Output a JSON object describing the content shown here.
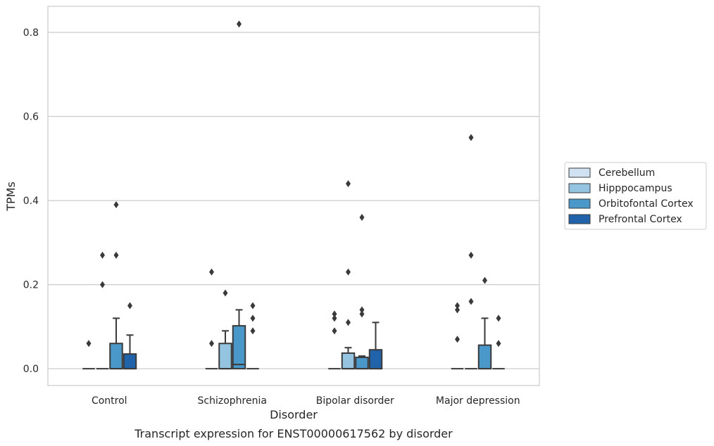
{
  "chart_data": {
    "type": "box",
    "caption": "Transcript expression for ENST00000617562 by disorder",
    "xlabel": "Disorder",
    "ylabel": "TPMs",
    "ylim": [
      -0.04,
      0.862
    ],
    "yticks": [
      0.0,
      0.2,
      0.4,
      0.6,
      0.8
    ],
    "ytick_labels": [
      "0.0",
      "0.2",
      "0.4",
      "0.6",
      "0.8"
    ],
    "grid": "horizontal",
    "legend_position": "right",
    "categories": [
      "Control",
      "Schizophrenia",
      "Bipolar disorder",
      "Major depression"
    ],
    "series": [
      {
        "name": "Cerebellum",
        "color": "#d0e1f2",
        "boxes": [
          {
            "q1": 0,
            "median": 0,
            "q3": 0,
            "whisker_low": 0,
            "whisker_high": 0,
            "outliers": [
              0.06
            ]
          },
          {
            "q1": 0,
            "median": 0,
            "q3": 0,
            "whisker_low": 0,
            "whisker_high": 0,
            "outliers": [
              0.06,
              0.23
            ]
          },
          {
            "q1": 0,
            "median": 0,
            "q3": 0,
            "whisker_low": 0,
            "whisker_high": 0,
            "outliers": [
              0.09,
              0.12,
              0.13
            ]
          },
          {
            "q1": 0,
            "median": 0,
            "q3": 0,
            "whisker_low": 0,
            "whisker_high": 0,
            "outliers": [
              0.07,
              0.14,
              0.15
            ]
          }
        ]
      },
      {
        "name": "Hipppocampus",
        "color": "#94c4df",
        "boxes": [
          {
            "q1": 0,
            "median": 0,
            "q3": 0,
            "whisker_low": 0,
            "whisker_high": 0,
            "outliers": [
              0.2,
              0.27
            ]
          },
          {
            "q1": 0,
            "median": 0,
            "q3": 0.06,
            "whisker_low": 0,
            "whisker_high": 0.09,
            "outliers": [
              0.18
            ]
          },
          {
            "q1": 0,
            "median": 0,
            "q3": 0.037,
            "whisker_low": 0,
            "whisker_high": 0.05,
            "outliers": [
              0.11,
              0.23,
              0.44
            ]
          },
          {
            "q1": 0,
            "median": 0,
            "q3": 0,
            "whisker_low": 0,
            "whisker_high": 0,
            "outliers": [
              0.16,
              0.27,
              0.55
            ]
          }
        ]
      },
      {
        "name": "Orbitofontal Cortex",
        "color": "#4a98c9",
        "boxes": [
          {
            "q1": 0,
            "median": 0,
            "q3": 0.06,
            "whisker_low": 0,
            "whisker_high": 0.12,
            "outliers": [
              0.27,
              0.39
            ]
          },
          {
            "q1": 0,
            "median": 0.01,
            "q3": 0.102,
            "whisker_low": 0,
            "whisker_high": 0.14,
            "outliers": [
              0.82
            ]
          },
          {
            "q1": 0,
            "median": 0,
            "q3": 0.027,
            "whisker_low": 0,
            "whisker_high": 0.03,
            "outliers": [
              0.13,
              0.14,
              0.36
            ]
          },
          {
            "q1": 0,
            "median": 0,
            "q3": 0.056,
            "whisker_low": 0,
            "whisker_high": 0.12,
            "outliers": [
              0.21
            ]
          }
        ]
      },
      {
        "name": "Prefrontal Cortex",
        "color": "#2163aa",
        "boxes": [
          {
            "q1": 0,
            "median": 0,
            "q3": 0.035,
            "whisker_low": 0,
            "whisker_high": 0.08,
            "outliers": [
              0.15
            ]
          },
          {
            "q1": 0,
            "median": 0,
            "q3": 0,
            "whisker_low": 0,
            "whisker_high": 0,
            "outliers": [
              0.09,
              0.12,
              0.15
            ]
          },
          {
            "q1": 0,
            "median": 0,
            "q3": 0.045,
            "whisker_low": 0,
            "whisker_high": 0.11,
            "outliers": []
          },
          {
            "q1": 0,
            "median": 0,
            "q3": 0,
            "whisker_low": 0,
            "whisker_high": 0,
            "outliers": [
              0.06,
              0.12
            ]
          }
        ]
      }
    ]
  }
}
